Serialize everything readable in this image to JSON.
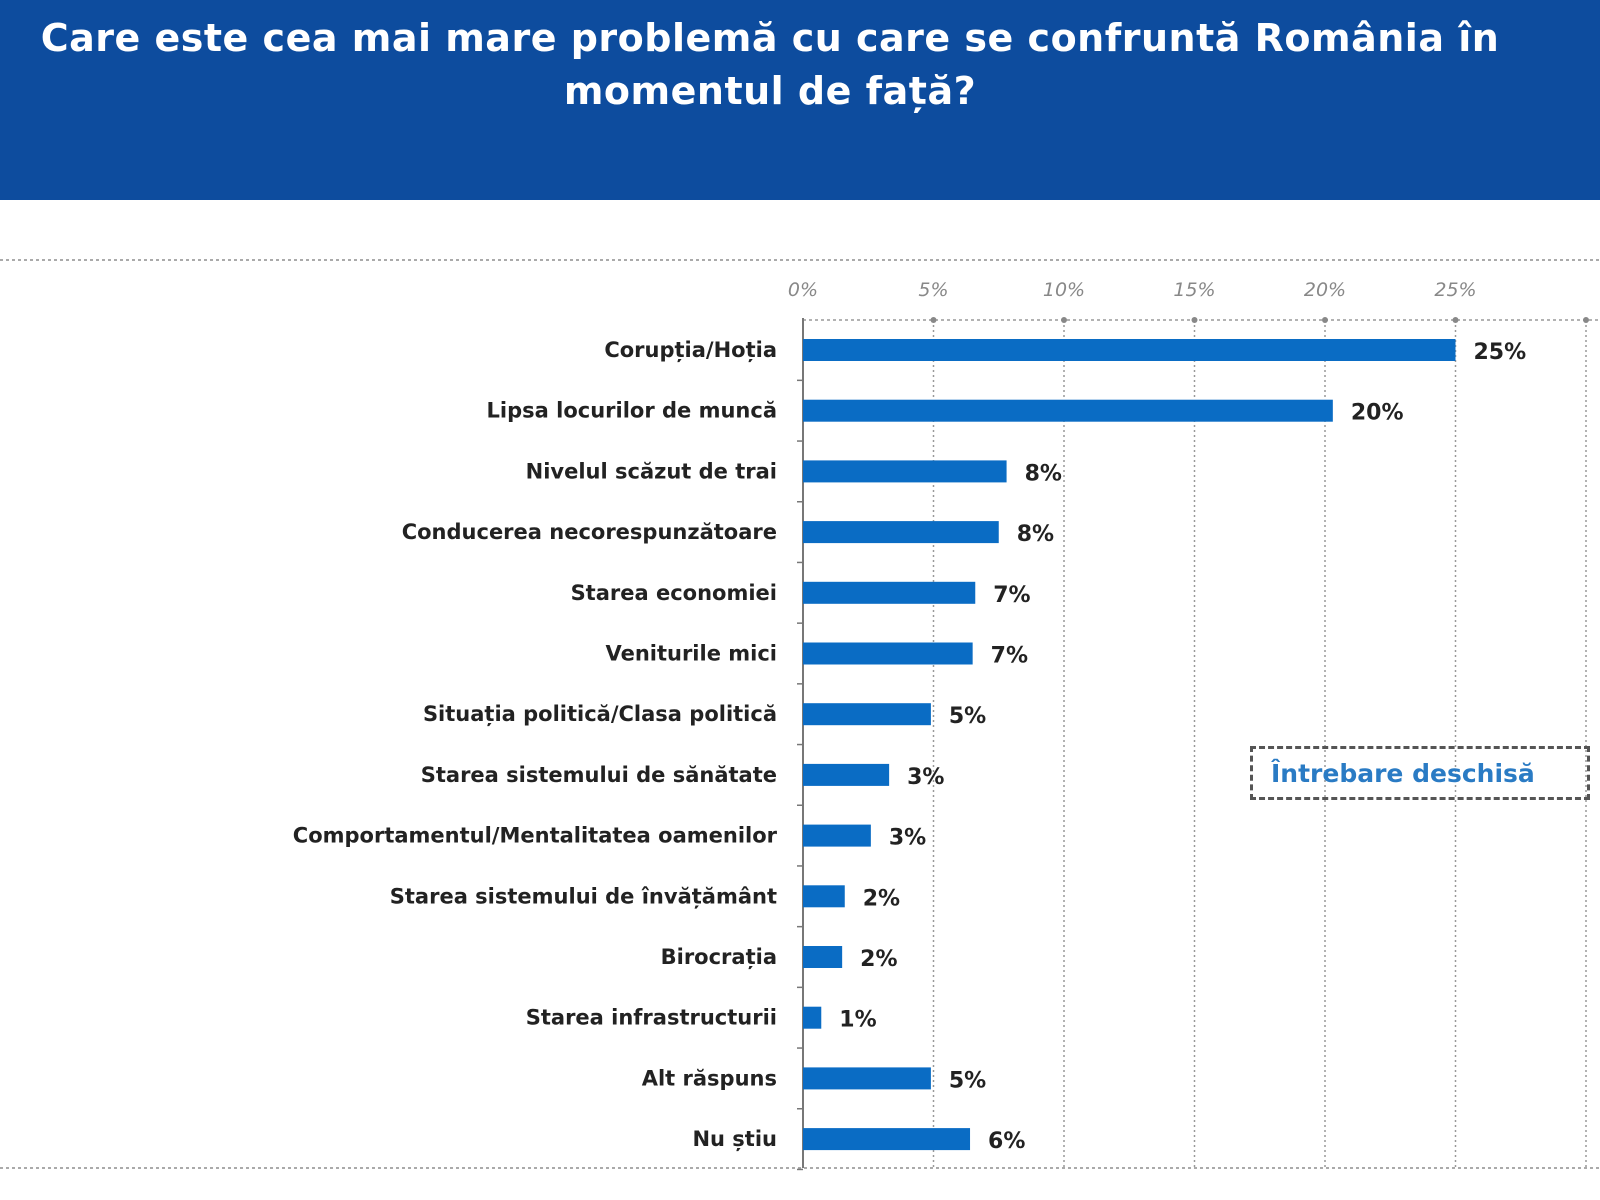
{
  "title": "Care este cea mai mare problemă cu care se confruntă România în momentul de față?",
  "note": "Întrebare deschisă",
  "colors": {
    "header": "#0d4c9e",
    "bar": "#0a6cc4",
    "note_text": "#2a7bc4"
  },
  "chart_data": {
    "type": "bar",
    "orientation": "horizontal",
    "xlim": [
      0,
      30
    ],
    "x_ticks": [
      "0%",
      "5%",
      "10%",
      "15%",
      "20%",
      "25%"
    ],
    "grid": true,
    "categories": [
      "Corupția/Hoția",
      "Lipsa locurilor de muncă",
      "Nivelul scăzut de trai",
      "Conducerea necorespunzătoare",
      "Starea economiei",
      "Veniturile mici",
      "Situația politică/Clasa politică",
      "Starea sistemului de sănătate",
      "Comportamentul/Mentalitatea oamenilor",
      "Starea sistemului de învățământ",
      "Birocrația",
      "Starea infrastructurii",
      "Alt răspuns",
      "Nu știu"
    ],
    "values": [
      25.0,
      20.3,
      7.8,
      7.5,
      6.6,
      6.5,
      4.9,
      3.3,
      2.6,
      1.6,
      1.5,
      0.7,
      4.9,
      6.4
    ],
    "labels": [
      "25%",
      "20%",
      "8%",
      "8%",
      "7%",
      "7%",
      "5%",
      "3%",
      "3%",
      "2%",
      "2%",
      "1%",
      "5%",
      "6%"
    ]
  }
}
